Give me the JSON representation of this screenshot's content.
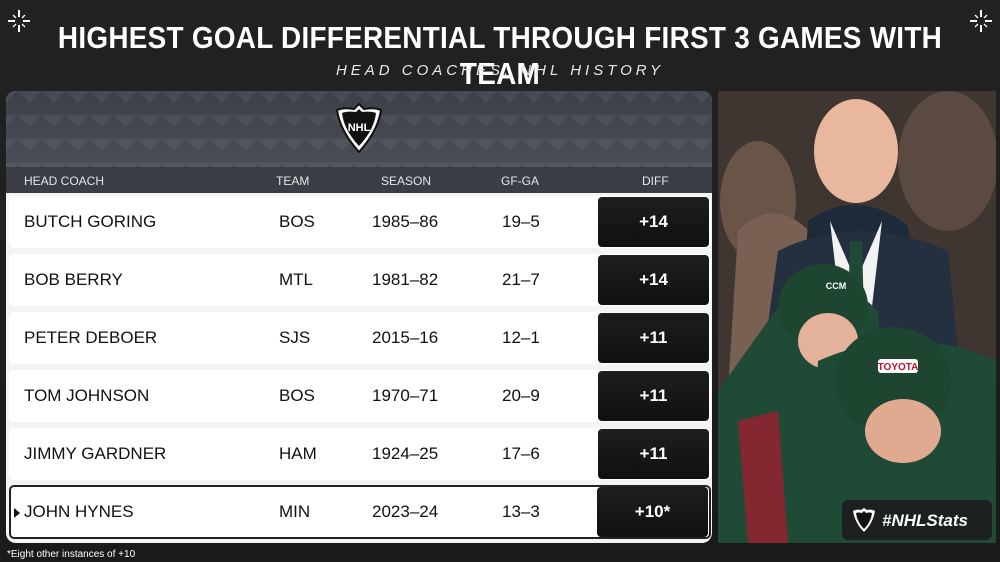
{
  "title": "HIGHEST GOAL DIFFERENTIAL THROUGH FIRST 3 GAMES WITH TEAM",
  "subtitle": "HEAD COACHES, NHL HISTORY",
  "logo_text": "NHL",
  "columns": {
    "coach": "HEAD COACH",
    "team": "TEAM",
    "season": "SEASON",
    "gfga": "GF-GA",
    "diff": "DIFF"
  },
  "rows": [
    {
      "coach": "BUTCH GORING",
      "team": "BOS",
      "season": "1985–86",
      "gfga": "19–5",
      "diff": "+14"
    },
    {
      "coach": "BOB BERRY",
      "team": "MTL",
      "season": "1981–82",
      "gfga": "21–7",
      "diff": "+14"
    },
    {
      "coach": "PETER DEBOER",
      "team": "SJS",
      "season": "2015–16",
      "gfga": "12–1",
      "diff": "+11"
    },
    {
      "coach": "TOM JOHNSON",
      "team": "BOS",
      "season": "1970–71",
      "gfga": "20–9",
      "diff": "+11"
    },
    {
      "coach": "JIMMY GARDNER",
      "team": "HAM",
      "season": "1924–25",
      "gfga": "17–6",
      "diff": "+11"
    },
    {
      "coach": "JOHN HYNES",
      "team": "MIN",
      "season": "2023–24",
      "gfga": "13–3",
      "diff": "+10*"
    }
  ],
  "photo": {
    "helmet_text": "TOYOTA",
    "helmet_brand": "CCM"
  },
  "badge": "#NHLStats",
  "footnote": "*Eight other instances of +10",
  "colors": {
    "background": "#1b1b1d",
    "header": "#3a3d44",
    "diff_cell": "#151517",
    "row": "#ffffff",
    "jersey_green": "#1f4a36"
  }
}
